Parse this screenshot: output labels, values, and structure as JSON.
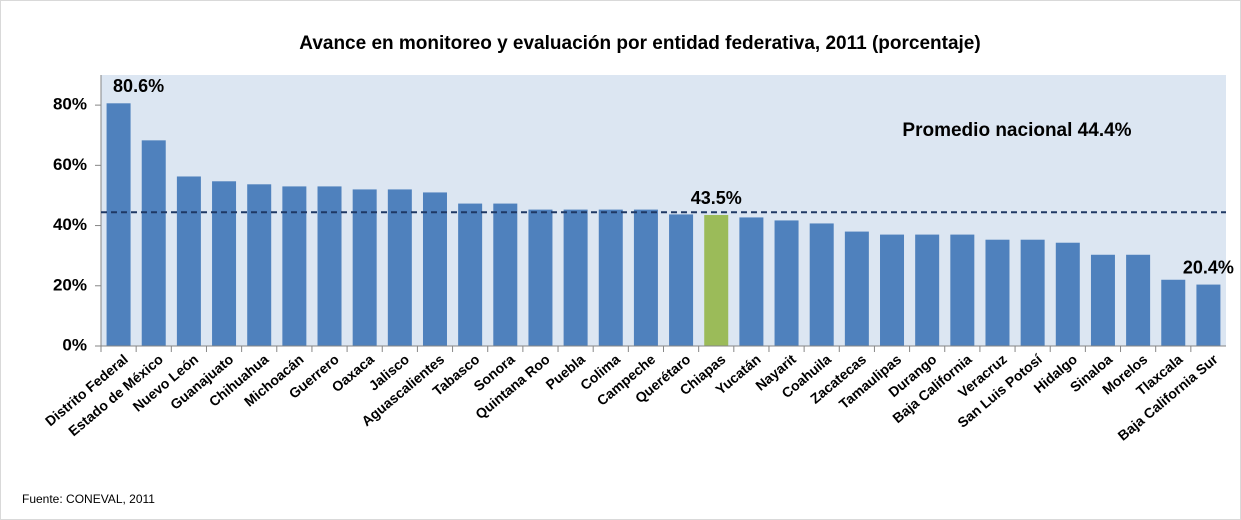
{
  "chart_data": {
    "type": "bar",
    "title": "Avance en monitoreo y evaluación por entidad federativa, 2011 (porcentaje)",
    "categories": [
      "Distrito Federal",
      "Estado de México",
      "Nuevo León",
      "Guanajuato",
      "Chihuahua",
      "Michoacán",
      "Guerrero",
      "Oaxaca",
      "Jalisco",
      "Aguascalientes",
      "Tabasco",
      "Sonora",
      "Quintana Roo",
      "Puebla",
      "Colima",
      "Campeche",
      "Querétaro",
      "Chiapas",
      "Yucatán",
      "Nayarit",
      "Coahuila",
      "Zacatecas",
      "Tamaulipas",
      "Durango",
      "Baja California",
      "Veracruz",
      "San Luis Potosí",
      "Hidalgo",
      "Sinaloa",
      "Morelos",
      "Tlaxcala",
      "Baja California Sur"
    ],
    "values": [
      80.6,
      68.3,
      56.3,
      54.7,
      53.7,
      53,
      53,
      52,
      52,
      51,
      47.3,
      47.3,
      45.3,
      45.3,
      45.3,
      45.3,
      43.7,
      43.5,
      42.7,
      41.7,
      40.7,
      38,
      37,
      37,
      37,
      35.3,
      35.3,
      34.3,
      30.3,
      30.3,
      22,
      20.4
    ],
    "value_labels": [
      "80.6%",
      null,
      null,
      null,
      null,
      null,
      null,
      null,
      null,
      null,
      null,
      null,
      null,
      null,
      null,
      null,
      null,
      "43.5%",
      null,
      null,
      null,
      null,
      null,
      null,
      null,
      null,
      null,
      null,
      null,
      null,
      null,
      "20.4%"
    ],
    "colors": [
      "#4f81bd",
      "#4f81bd",
      "#4f81bd",
      "#4f81bd",
      "#4f81bd",
      "#4f81bd",
      "#4f81bd",
      "#4f81bd",
      "#4f81bd",
      "#4f81bd",
      "#4f81bd",
      "#4f81bd",
      "#4f81bd",
      "#4f81bd",
      "#4f81bd",
      "#4f81bd",
      "#4f81bd",
      "#9bbb59",
      "#4f81bd",
      "#4f81bd",
      "#4f81bd",
      "#4f81bd",
      "#4f81bd",
      "#4f81bd",
      "#4f81bd",
      "#4f81bd",
      "#4f81bd",
      "#4f81bd",
      "#4f81bd",
      "#4f81bd",
      "#4f81bd",
      "#4f81bd"
    ],
    "ylim": [
      0,
      90
    ],
    "yticks": [
      {
        "value": 0,
        "label": "0%"
      },
      {
        "value": 20,
        "label": "20%"
      },
      {
        "value": 40,
        "label": "40%"
      },
      {
        "value": 60,
        "label": "60%"
      },
      {
        "value": 80,
        "label": "80%"
      }
    ],
    "reference_line": {
      "value": 44.4,
      "label": "Promedio nacional 44.4%",
      "color": "#1f3864"
    },
    "plot_background": "#dce6f2",
    "source": "Fuente: CONEVAL, 2011"
  }
}
